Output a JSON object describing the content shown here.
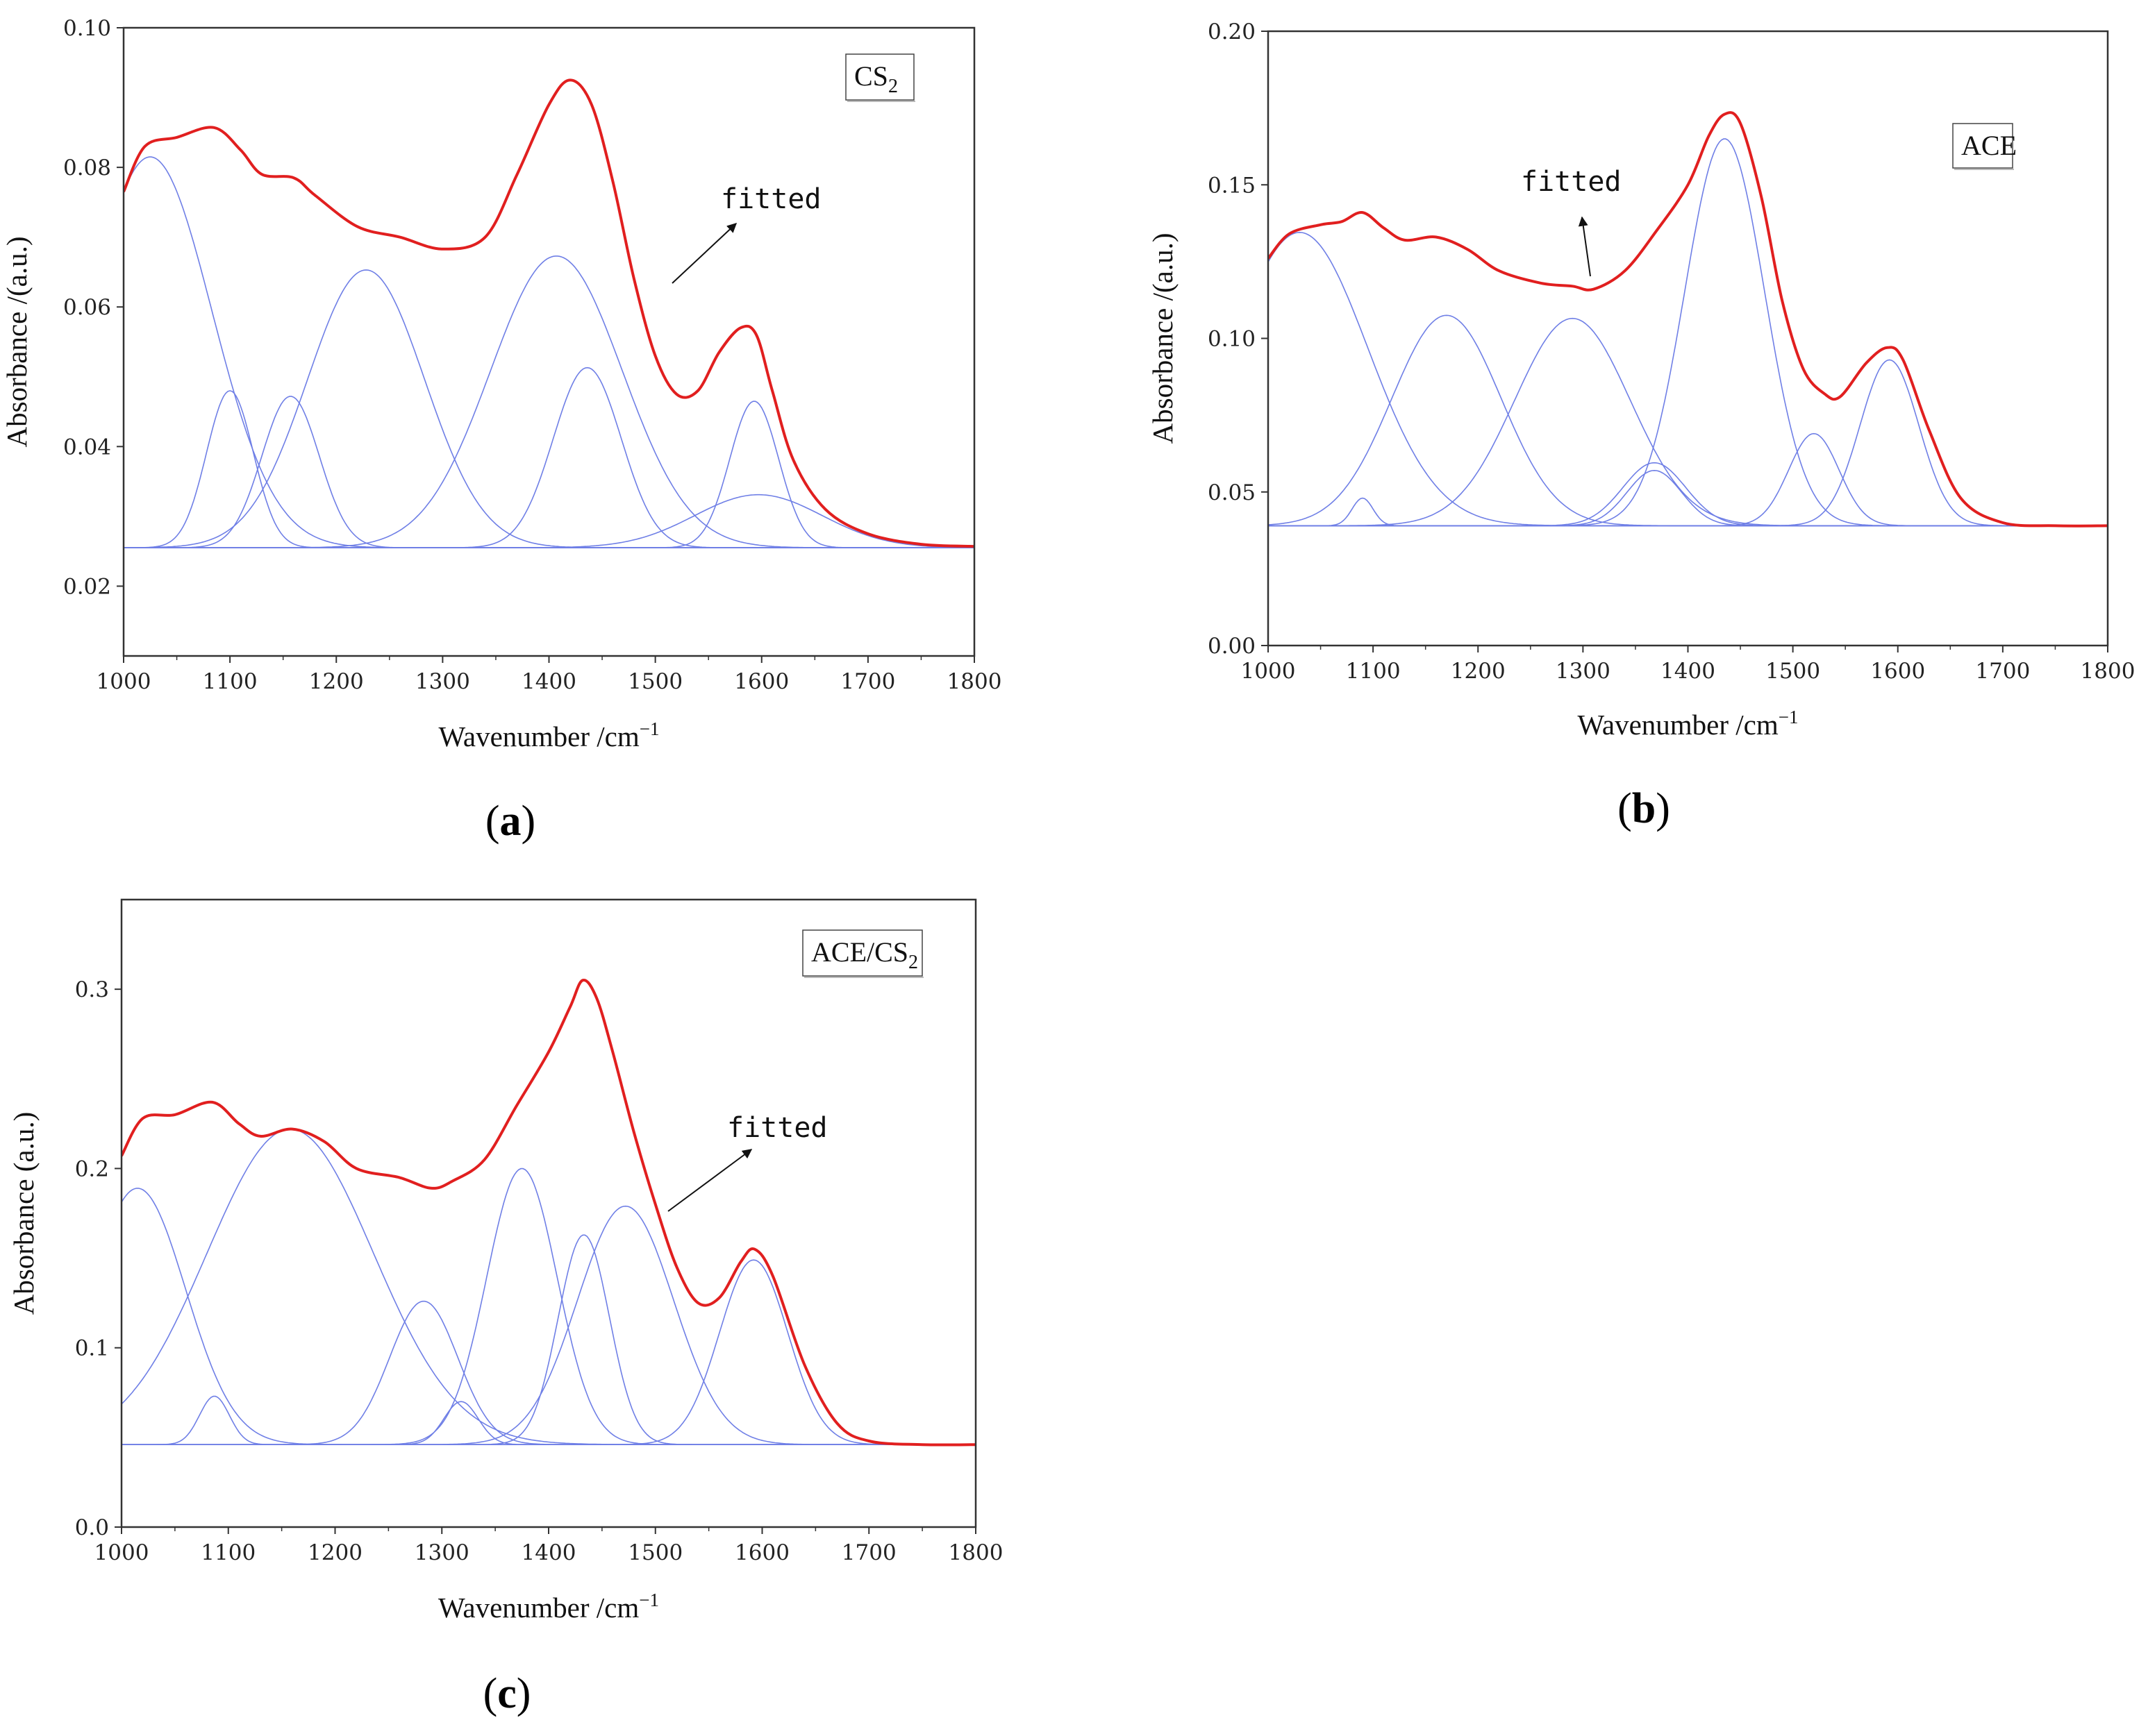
{
  "figure": {
    "description_colors": {
      "total": "#e11f1f",
      "component": "#6f7fe6",
      "axis": "#333333"
    }
  },
  "chart_data": [
    {
      "id": "a",
      "type": "line",
      "panel_label": "a",
      "legend": {
        "text": "CS",
        "sub": "2",
        "placement": "top-right"
      },
      "annotation": {
        "text": "fitted"
      },
      "xlabel": "Wavenumber /cm",
      "xlabel_sup": "−1",
      "ylabel": "Absorbance /(a.u.)",
      "xlim": [
        1000,
        1800
      ],
      "ylim": [
        0.01,
        0.1
      ],
      "xticks": [
        1000,
        1100,
        1200,
        1300,
        1400,
        1500,
        1600,
        1700,
        1800
      ],
      "yticks": [
        0.02,
        0.04,
        0.06,
        0.08,
        0.1
      ],
      "ytick_labels": [
        "0.02",
        "0.04",
        "0.06",
        "0.08",
        "0.10"
      ],
      "baseline": 0.0255,
      "series": [
        {
          "name": "fitted total",
          "role": "total",
          "x": [
            1000,
            1020,
            1050,
            1085,
            1110,
            1130,
            1160,
            1180,
            1220,
            1260,
            1300,
            1340,
            1370,
            1400,
            1420,
            1440,
            1460,
            1480,
            1500,
            1520,
            1540,
            1560,
            1580,
            1595,
            1610,
            1630,
            1660,
            1700,
            1750,
            1800
          ],
          "y": [
            0.0765,
            0.083,
            0.0843,
            0.0857,
            0.0825,
            0.079,
            0.0785,
            0.076,
            0.0715,
            0.07,
            0.0683,
            0.07,
            0.079,
            0.089,
            0.0925,
            0.089,
            0.078,
            0.064,
            0.053,
            0.0475,
            0.048,
            0.0535,
            0.057,
            0.056,
            0.048,
            0.038,
            0.031,
            0.0275,
            0.026,
            0.0257
          ]
        },
        {
          "name": "component 1",
          "role": "component",
          "center": 1025,
          "amplitude": 0.056,
          "sigma": 58
        },
        {
          "name": "component 2",
          "role": "component",
          "center": 1100,
          "amplitude": 0.0225,
          "sigma": 22
        },
        {
          "name": "component 3",
          "role": "component",
          "center": 1157,
          "amplitude": 0.0217,
          "sigma": 27
        },
        {
          "name": "component 4",
          "role": "component",
          "center": 1228,
          "amplitude": 0.0398,
          "sigma": 55
        },
        {
          "name": "component 5",
          "role": "component",
          "center": 1407,
          "amplitude": 0.0418,
          "sigma": 62
        },
        {
          "name": "component 6",
          "role": "component",
          "center": 1436,
          "amplitude": 0.0258,
          "sigma": 32
        },
        {
          "name": "component 7",
          "role": "component",
          "center": 1593,
          "amplitude": 0.021,
          "sigma": 23
        },
        {
          "name": "component 8",
          "role": "component",
          "center": 1597,
          "amplitude": 0.0076,
          "sigma": 60
        }
      ]
    },
    {
      "id": "b",
      "type": "line",
      "panel_label": "b",
      "legend": {
        "text": "ACE",
        "sub": "",
        "placement": "top-right"
      },
      "annotation": {
        "text": "fitted"
      },
      "xlabel": "Wavenumber /cm",
      "xlabel_sup": "−1",
      "ylabel": "Absorbance /(a.u.)",
      "xlim": [
        1000,
        1800
      ],
      "ylim": [
        0.0,
        0.2
      ],
      "xticks": [
        1000,
        1100,
        1200,
        1300,
        1400,
        1500,
        1600,
        1700,
        1800
      ],
      "yticks": [
        0.0,
        0.05,
        0.1,
        0.15,
        0.2
      ],
      "ytick_labels": [
        "0.00",
        "0.05",
        "0.10",
        "0.15",
        "0.20"
      ],
      "baseline": 0.039,
      "series": [
        {
          "name": "fitted total",
          "role": "total",
          "x": [
            1000,
            1020,
            1050,
            1070,
            1090,
            1110,
            1130,
            1160,
            1190,
            1220,
            1260,
            1290,
            1310,
            1340,
            1370,
            1400,
            1420,
            1435,
            1450,
            1470,
            1490,
            1510,
            1530,
            1545,
            1570,
            1590,
            1605,
            1630,
            1660,
            1700,
            1750,
            1800
          ],
          "y": [
            0.126,
            0.134,
            0.137,
            0.138,
            0.141,
            0.136,
            0.132,
            0.133,
            0.129,
            0.122,
            0.118,
            0.117,
            0.116,
            0.122,
            0.135,
            0.15,
            0.166,
            0.173,
            0.17,
            0.146,
            0.112,
            0.09,
            0.082,
            0.081,
            0.092,
            0.097,
            0.093,
            0.07,
            0.048,
            0.04,
            0.039,
            0.039
          ]
        },
        {
          "name": "component 1",
          "role": "component",
          "center": 1030,
          "amplitude": 0.0955,
          "sigma": 65
        },
        {
          "name": "component 2",
          "role": "component",
          "center": 1090,
          "amplitude": 0.009,
          "sigma": 10
        },
        {
          "name": "component 3",
          "role": "component",
          "center": 1170,
          "amplitude": 0.0685,
          "sigma": 52
        },
        {
          "name": "component 4",
          "role": "component",
          "center": 1290,
          "amplitude": 0.0675,
          "sigma": 55
        },
        {
          "name": "component 5",
          "role": "component",
          "center": 1368,
          "amplitude": 0.0205,
          "sigma": 30
        },
        {
          "name": "component 6",
          "role": "component",
          "center": 1368,
          "amplitude": 0.018,
          "sigma": 26
        },
        {
          "name": "component 7",
          "role": "component",
          "center": 1435,
          "amplitude": 0.126,
          "sigma": 38
        },
        {
          "name": "component 8",
          "role": "component",
          "center": 1520,
          "amplitude": 0.03,
          "sigma": 24
        },
        {
          "name": "component 9",
          "role": "component",
          "center": 1592,
          "amplitude": 0.054,
          "sigma": 28
        }
      ]
    },
    {
      "id": "c",
      "type": "line",
      "panel_label": "c",
      "legend": {
        "text": "ACE/CS",
        "sub": "2",
        "placement": "top-right"
      },
      "annotation": {
        "text": "fitted"
      },
      "xlabel": "Wavenumber /cm",
      "xlabel_sup": "−1",
      "ylabel": "Absorbance (a.u.)",
      "xlim": [
        1000,
        1800
      ],
      "ylim": [
        0.0,
        0.35
      ],
      "xticks": [
        1000,
        1100,
        1200,
        1300,
        1400,
        1500,
        1600,
        1700,
        1800
      ],
      "yticks": [
        0.0,
        0.1,
        0.2,
        0.3
      ],
      "ytick_labels": [
        "0.0",
        "0.1",
        "0.2",
        "0.3"
      ],
      "baseline": 0.046,
      "series": [
        {
          "name": "fitted total",
          "role": "total",
          "x": [
            1000,
            1020,
            1050,
            1085,
            1110,
            1130,
            1160,
            1190,
            1220,
            1260,
            1290,
            1310,
            1340,
            1370,
            1400,
            1420,
            1432,
            1445,
            1460,
            1480,
            1500,
            1520,
            1540,
            1560,
            1580,
            1593,
            1610,
            1640,
            1670,
            1700,
            1750,
            1800
          ],
          "y": [
            0.207,
            0.228,
            0.23,
            0.237,
            0.225,
            0.218,
            0.222,
            0.215,
            0.2,
            0.195,
            0.189,
            0.193,
            0.205,
            0.235,
            0.265,
            0.29,
            0.305,
            0.295,
            0.265,
            0.22,
            0.18,
            0.145,
            0.125,
            0.128,
            0.148,
            0.155,
            0.14,
            0.09,
            0.058,
            0.048,
            0.046,
            0.046
          ]
        },
        {
          "name": "component 1",
          "role": "component",
          "center": 1015,
          "amplitude": 0.143,
          "sigma": 45
        },
        {
          "name": "component 2",
          "role": "component",
          "center": 1087,
          "amplitude": 0.027,
          "sigma": 14
        },
        {
          "name": "component 3",
          "role": "component",
          "center": 1158,
          "amplitude": 0.176,
          "sigma": 78
        },
        {
          "name": "component 4",
          "role": "component",
          "center": 1283,
          "amplitude": 0.08,
          "sigma": 32
        },
        {
          "name": "component 5",
          "role": "component",
          "center": 1318,
          "amplitude": 0.024,
          "sigma": 16
        },
        {
          "name": "component 6",
          "role": "component",
          "center": 1375,
          "amplitude": 0.154,
          "sigma": 33
        },
        {
          "name": "component 7",
          "role": "component",
          "center": 1433,
          "amplitude": 0.117,
          "sigma": 24
        },
        {
          "name": "component 8",
          "role": "component",
          "center": 1472,
          "amplitude": 0.133,
          "sigma": 45
        },
        {
          "name": "component 9",
          "role": "component",
          "center": 1592,
          "amplitude": 0.103,
          "sigma": 32
        }
      ]
    }
  ]
}
